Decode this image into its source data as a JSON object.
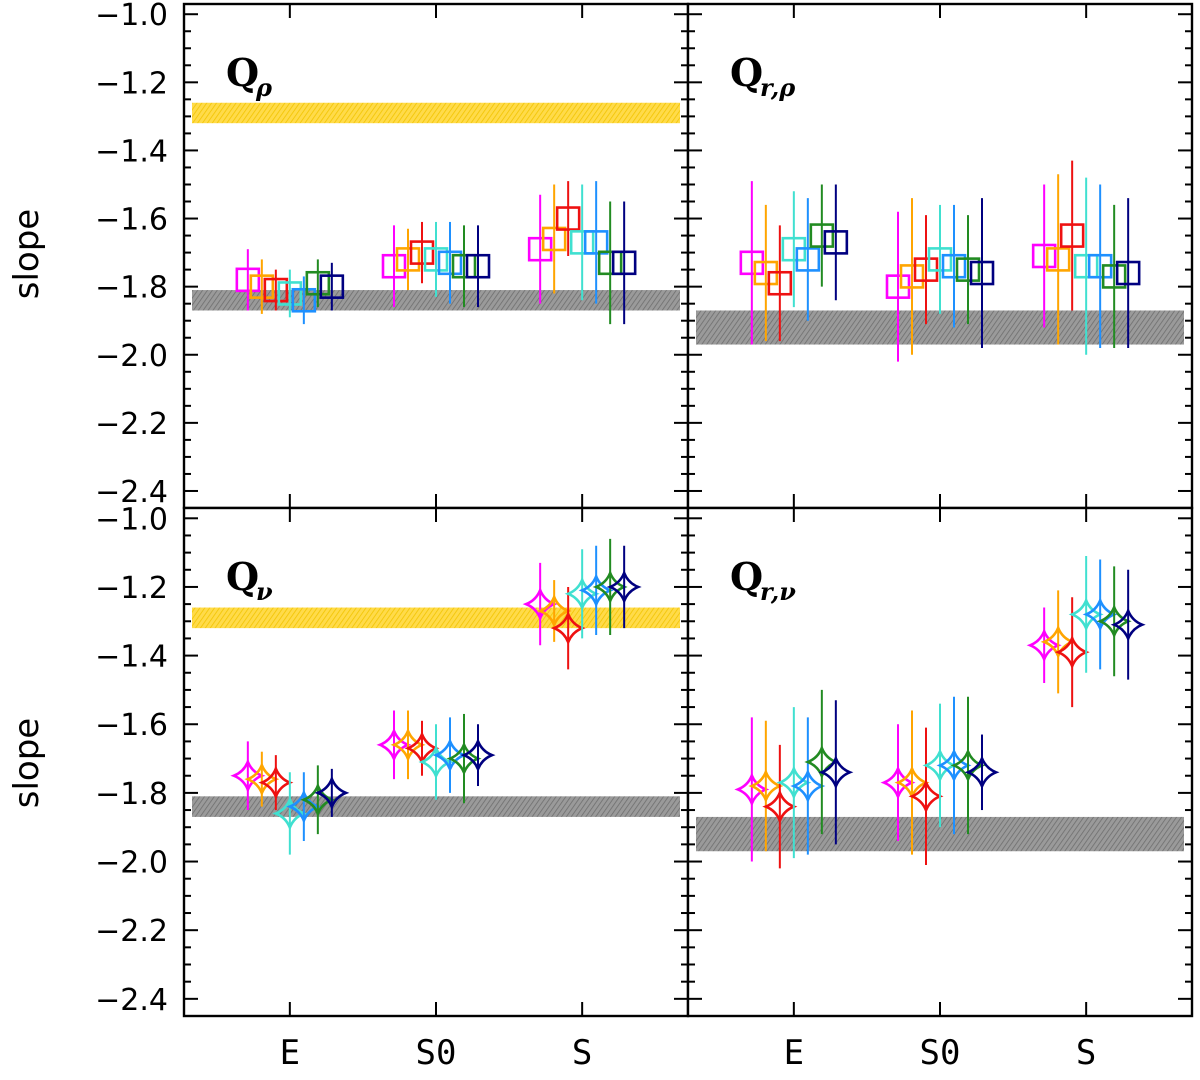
{
  "chart_data": {
    "type": "scatter",
    "figure_ylabel": "slope",
    "categories": [
      "E",
      "S0",
      "S"
    ],
    "ylim": [
      -2.45,
      -0.97
    ],
    "yticks": [
      -1.0,
      -1.2,
      -1.4,
      -1.6,
      -1.8,
      -2.0,
      -2.2,
      -2.4
    ],
    "series_colors": [
      "#ff00ff",
      "#ffa500",
      "#ee1111",
      "#40e0d0",
      "#1e90ff",
      "#228b22",
      "#000080"
    ],
    "panels": [
      {
        "title": "Q",
        "subscript": "ρ",
        "marker": "square",
        "bands": [
          {
            "name": "yellow",
            "color": "#ffd21e",
            "y_range": [
              -1.32,
              -1.26
            ]
          },
          {
            "name": "gray",
            "color": "#8c8c8c",
            "y_range": [
              -1.87,
              -1.81
            ]
          }
        ],
        "groups": [
          {
            "category": "E",
            "points": [
              {
                "y": -1.78,
                "err": 0.09
              },
              {
                "y": -1.8,
                "err": 0.08
              },
              {
                "y": -1.81,
                "err": 0.06
              },
              {
                "y": -1.82,
                "err": 0.07
              },
              {
                "y": -1.84,
                "err": 0.07
              },
              {
                "y": -1.79,
                "err": 0.07
              },
              {
                "y": -1.8,
                "err": 0.07
              }
            ]
          },
          {
            "category": "S0",
            "points": [
              {
                "y": -1.74,
                "err": 0.12
              },
              {
                "y": -1.72,
                "err": 0.09
              },
              {
                "y": -1.7,
                "err": 0.09
              },
              {
                "y": -1.72,
                "err": 0.11
              },
              {
                "y": -1.73,
                "err": 0.12
              },
              {
                "y": -1.74,
                "err": 0.12
              },
              {
                "y": -1.74,
                "err": 0.12
              }
            ]
          },
          {
            "category": "S",
            "points": [
              {
                "y": -1.69,
                "err": 0.16
              },
              {
                "y": -1.66,
                "err": 0.16
              },
              {
                "y": -1.6,
                "err": 0.11
              },
              {
                "y": -1.67,
                "err": 0.17
              },
              {
                "y": -1.67,
                "err": 0.18
              },
              {
                "y": -1.73,
                "err": 0.18
              },
              {
                "y": -1.73,
                "err": 0.18
              }
            ]
          }
        ]
      },
      {
        "title": "Q",
        "subscript": "r,ρ",
        "marker": "square",
        "bands": [
          {
            "name": "gray",
            "color": "#8c8c8c",
            "y_range": [
              -1.97,
              -1.87
            ]
          }
        ],
        "groups": [
          {
            "category": "E",
            "points": [
              {
                "y": -1.73,
                "err": 0.24
              },
              {
                "y": -1.76,
                "err": 0.2
              },
              {
                "y": -1.79,
                "err": 0.17
              },
              {
                "y": -1.69,
                "err": 0.17
              },
              {
                "y": -1.72,
                "err": 0.18
              },
              {
                "y": -1.65,
                "err": 0.15
              },
              {
                "y": -1.67,
                "err": 0.17
              }
            ]
          },
          {
            "category": "S0",
            "points": [
              {
                "y": -1.8,
                "err": 0.22
              },
              {
                "y": -1.77,
                "err": 0.23
              },
              {
                "y": -1.75,
                "err": 0.16
              },
              {
                "y": -1.72,
                "err": 0.16
              },
              {
                "y": -1.74,
                "err": 0.18
              },
              {
                "y": -1.75,
                "err": 0.16
              },
              {
                "y": -1.76,
                "err": 0.22
              }
            ]
          },
          {
            "category": "S",
            "points": [
              {
                "y": -1.71,
                "err": 0.21
              },
              {
                "y": -1.72,
                "err": 0.25
              },
              {
                "y": -1.65,
                "err": 0.22
              },
              {
                "y": -1.74,
                "err": 0.26
              },
              {
                "y": -1.74,
                "err": 0.24
              },
              {
                "y": -1.77,
                "err": 0.21
              },
              {
                "y": -1.76,
                "err": 0.22
              }
            ]
          }
        ]
      },
      {
        "title": "Q",
        "subscript": "ν",
        "marker": "star",
        "bands": [
          {
            "name": "yellow",
            "color": "#ffd21e",
            "y_range": [
              -1.32,
              -1.26
            ]
          },
          {
            "name": "gray",
            "color": "#8c8c8c",
            "y_range": [
              -1.87,
              -1.81
            ]
          }
        ],
        "groups": [
          {
            "category": "E",
            "points": [
              {
                "y": -1.75,
                "err": 0.1
              },
              {
                "y": -1.76,
                "err": 0.08
              },
              {
                "y": -1.77,
                "err": 0.08
              },
              {
                "y": -1.86,
                "err": 0.12
              },
              {
                "y": -1.84,
                "err": 0.1
              },
              {
                "y": -1.82,
                "err": 0.1
              },
              {
                "y": -1.8,
                "err": 0.07
              }
            ]
          },
          {
            "category": "S0",
            "points": [
              {
                "y": -1.66,
                "err": 0.1
              },
              {
                "y": -1.66,
                "err": 0.1
              },
              {
                "y": -1.67,
                "err": 0.08
              },
              {
                "y": -1.71,
                "err": 0.11
              },
              {
                "y": -1.69,
                "err": 0.11
              },
              {
                "y": -1.7,
                "err": 0.13
              },
              {
                "y": -1.69,
                "err": 0.09
              }
            ]
          },
          {
            "category": "S",
            "points": [
              {
                "y": -1.25,
                "err": 0.12
              },
              {
                "y": -1.27,
                "err": 0.09
              },
              {
                "y": -1.32,
                "err": 0.12
              },
              {
                "y": -1.22,
                "err": 0.13
              },
              {
                "y": -1.21,
                "err": 0.13
              },
              {
                "y": -1.2,
                "err": 0.14
              },
              {
                "y": -1.2,
                "err": 0.12
              }
            ]
          }
        ]
      },
      {
        "title": "Q",
        "subscript": "r,ν",
        "marker": "star",
        "bands": [
          {
            "name": "gray",
            "color": "#8c8c8c",
            "y_range": [
              -1.97,
              -1.87
            ]
          }
        ],
        "groups": [
          {
            "category": "E",
            "points": [
              {
                "y": -1.79,
                "err": 0.21
              },
              {
                "y": -1.78,
                "err": 0.19
              },
              {
                "y": -1.84,
                "err": 0.18
              },
              {
                "y": -1.77,
                "err": 0.22
              },
              {
                "y": -1.78,
                "err": 0.2
              },
              {
                "y": -1.71,
                "err": 0.21
              },
              {
                "y": -1.74,
                "err": 0.21
              }
            ]
          },
          {
            "category": "S0",
            "points": [
              {
                "y": -1.77,
                "err": 0.17
              },
              {
                "y": -1.77,
                "err": 0.21
              },
              {
                "y": -1.81,
                "err": 0.2
              },
              {
                "y": -1.72,
                "err": 0.18
              },
              {
                "y": -1.72,
                "err": 0.2
              },
              {
                "y": -1.72,
                "err": 0.2
              },
              {
                "y": -1.74,
                "err": 0.11
              }
            ]
          },
          {
            "category": "S",
            "points": [
              {
                "y": -1.37,
                "err": 0.11
              },
              {
                "y": -1.36,
                "err": 0.15
              },
              {
                "y": -1.39,
                "err": 0.16
              },
              {
                "y": -1.28,
                "err": 0.17
              },
              {
                "y": -1.28,
                "err": 0.16
              },
              {
                "y": -1.3,
                "err": 0.16
              },
              {
                "y": -1.31,
                "err": 0.16
              }
            ]
          }
        ]
      }
    ]
  }
}
